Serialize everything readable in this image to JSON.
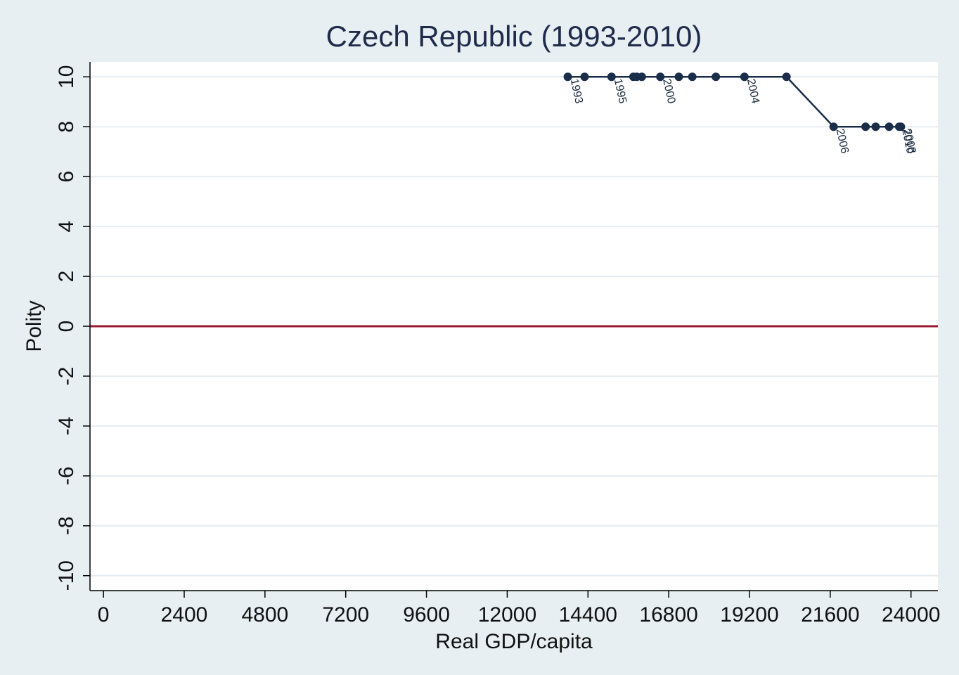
{
  "chart_data": {
    "type": "line",
    "title": "Czech Republic (1993-2010)",
    "xlabel": "Real GDP/capita",
    "ylabel": "Polity",
    "xlim": [
      -400,
      24800
    ],
    "ylim": [
      -10.6,
      10.6
    ],
    "xticks": [
      "0",
      "2400",
      "4800",
      "7200",
      "9600",
      "12000",
      "14400",
      "16800",
      "19200",
      "21600",
      "24000"
    ],
    "xtick_values": [
      0,
      2400,
      4800,
      7200,
      9600,
      12000,
      14400,
      16800,
      19200,
      21600,
      24000
    ],
    "yticks": [
      "-10",
      "-8",
      "-6",
      "-4",
      "-2",
      "0",
      "2",
      "4",
      "6",
      "8",
      "10"
    ],
    "ytick_values": [
      -10,
      -8,
      -6,
      -4,
      -2,
      0,
      2,
      4,
      6,
      8,
      10
    ],
    "reference_line": {
      "y": 0,
      "color": "#9b1b30"
    },
    "grid": true,
    "series": [
      {
        "color": "#1a2e4a",
        "points": [
          {
            "x": 13800,
            "y": 10,
            "label": "1993"
          },
          {
            "x": 14300,
            "y": 10,
            "label": ""
          },
          {
            "x": 15100,
            "y": 10,
            "label": "1995"
          },
          {
            "x": 15750,
            "y": 10,
            "label": ""
          },
          {
            "x": 15850,
            "y": 10,
            "label": ""
          },
          {
            "x": 16000,
            "y": 10,
            "label": ""
          },
          {
            "x": 16550,
            "y": 10,
            "label": "2000"
          },
          {
            "x": 17100,
            "y": 10,
            "label": ""
          },
          {
            "x": 17500,
            "y": 10,
            "label": ""
          },
          {
            "x": 18200,
            "y": 10,
            "label": ""
          },
          {
            "x": 19050,
            "y": 10,
            "label": "2004"
          },
          {
            "x": 20300,
            "y": 10,
            "label": ""
          },
          {
            "x": 21700,
            "y": 8,
            "label": "2006"
          },
          {
            "x": 22650,
            "y": 8,
            "label": ""
          },
          {
            "x": 22950,
            "y": 8,
            "label": ""
          },
          {
            "x": 23350,
            "y": 8,
            "label": ""
          },
          {
            "x": 23700,
            "y": 8,
            "label": "2008"
          },
          {
            "x": 23650,
            "y": 8,
            "label": "2010"
          }
        ]
      }
    ],
    "colors": {
      "background": "#e8eff3",
      "plot_bg": "#ffffff",
      "grid": "#e6ecf0",
      "series": "#1a2e4a",
      "refline": "#9b1b30",
      "title": "#1e2b4a"
    }
  }
}
